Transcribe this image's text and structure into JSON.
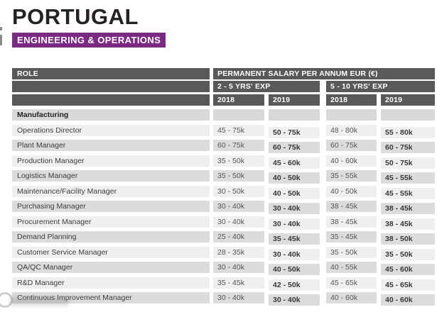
{
  "header": {
    "title": "PORTUGAL",
    "badge": "ENGINEERING & OPERATIONS"
  },
  "table": {
    "role_header": "ROLE",
    "salary_header": "PERMANENT SALARY PER ANNUM EUR (€)",
    "groups": [
      {
        "label": "2 - 5 YRS' EXP",
        "years": [
          "2018",
          "2019"
        ]
      },
      {
        "label": "5 - 10 YRS' EXP",
        "years": [
          "2018",
          "2019"
        ]
      }
    ],
    "section": "Manufacturing",
    "rows": [
      {
        "role": "Operations Director",
        "values": [
          "45 - 75k",
          "50 - 75k",
          "48 - 80k",
          "55 - 80k"
        ]
      },
      {
        "role": "Plant Manager",
        "values": [
          "60 - 75k",
          "60 - 75k",
          "60 - 75k",
          "60 - 75k"
        ]
      },
      {
        "role": "Production Manager",
        "values": [
          "35 - 50k",
          "45 - 60k",
          "40 - 60k",
          "50 - 75k"
        ]
      },
      {
        "role": "Logistics Manager",
        "values": [
          "35 - 50k",
          "40 - 50k",
          "35 - 55k",
          "45 - 55k"
        ]
      },
      {
        "role": "Maintenance/Facility Manager",
        "values": [
          "30 - 50k",
          "40 - 50k",
          "40 - 50k",
          "45 - 55k"
        ]
      },
      {
        "role": "Purchasing Manager",
        "values": [
          "30 - 40k",
          "30 - 40k",
          "38 - 45k",
          "38 - 45k"
        ]
      },
      {
        "role": "Procurement Manager",
        "values": [
          "30 - 40k",
          "30 - 40k",
          "38 - 45k",
          "38 - 45k"
        ]
      },
      {
        "role": "Demand Planning",
        "values": [
          "25 - 40k",
          "35 - 45k",
          "35 - 45k",
          "38 - 50k"
        ]
      },
      {
        "role": "Customer Service Manager",
        "values": [
          "28 - 35k",
          "30 - 40k",
          "35 - 50k",
          "35 - 50k"
        ]
      },
      {
        "role": "QA/QC Manager",
        "values": [
          "30 - 40k",
          "40 - 50k",
          "40 - 55k",
          "45 - 60k"
        ]
      },
      {
        "role": "R&D Manager",
        "values": [
          "35 - 45k",
          "42 - 50k",
          "45 - 65k",
          "45 - 65k"
        ]
      },
      {
        "role": "Continuous Improvement Manager",
        "values": [
          "30 - 40k",
          "30 - 40k",
          "40 - 60k",
          "40 - 60k"
        ]
      }
    ]
  },
  "colors": {
    "accent_purple": "#7b2a83",
    "header_gray": "#58595b",
    "row_light": "#efeff0",
    "row_dark": "#dcdcdd",
    "section_gray": "#d9d9da"
  }
}
